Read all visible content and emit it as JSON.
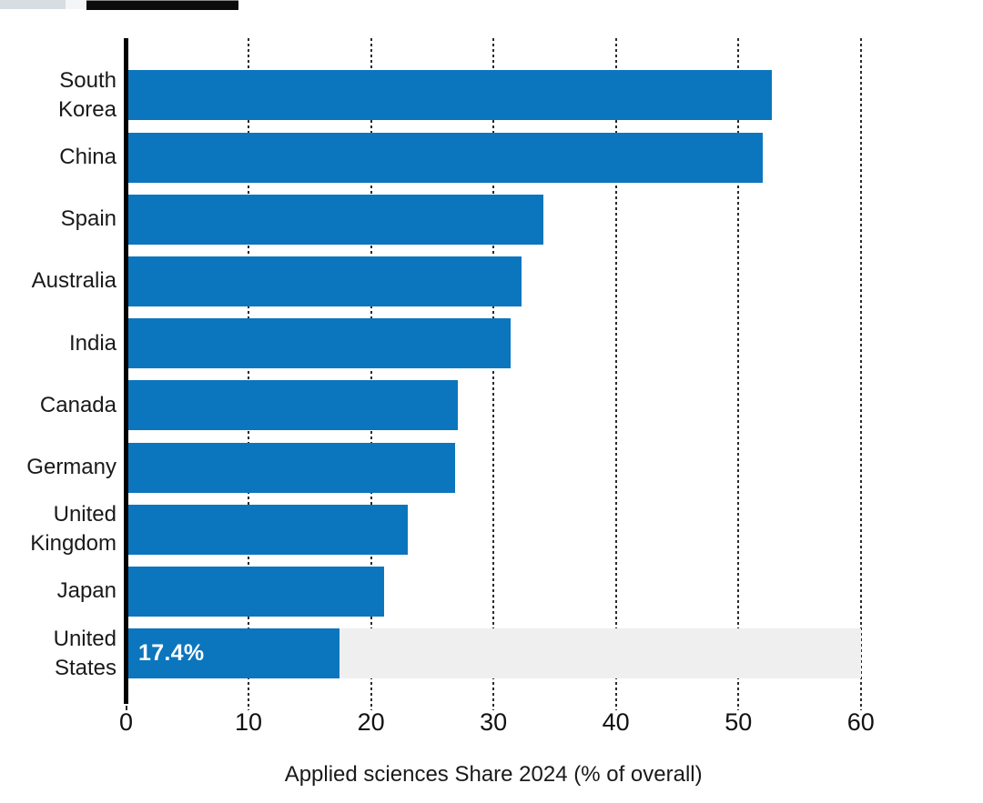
{
  "top_fragments": {
    "light_chip_color": "#d6dde3",
    "dark_chip_color": "#0b0b0b"
  },
  "chart_data": {
    "type": "bar",
    "orientation": "horizontal",
    "title": "",
    "xlabel": "Applied sciences Share 2024 (% of overall)",
    "ylabel": "",
    "categories": [
      "South Korea",
      "China",
      "Spain",
      "Australia",
      "India",
      "Canada",
      "Germany",
      "United Kingdom",
      "Japan",
      "United States"
    ],
    "values": [
      52.7,
      52.0,
      34.1,
      32.3,
      31.4,
      27.1,
      26.9,
      23.0,
      21.1,
      17.4
    ],
    "xticks": [
      0,
      10,
      20,
      30,
      40,
      50,
      60
    ],
    "xlim": [
      0,
      60
    ],
    "grid": "dotted-vertical",
    "legend_position": "none",
    "bar_color": "#0b76bd",
    "highlight_category": "United States",
    "highlight_value_label": "17.4%",
    "highlight_label_color": "#ffffff",
    "highlight_band_color": "#efefef"
  }
}
